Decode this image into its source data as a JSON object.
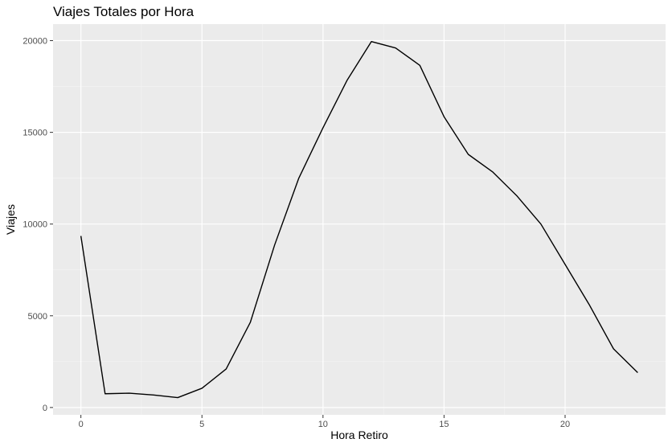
{
  "chart_data": {
    "type": "line",
    "title": "Viajes Totales por Hora",
    "xlabel": "Hora Retiro",
    "ylabel": "Viajes",
    "x": [
      0,
      1,
      2,
      3,
      4,
      5,
      6,
      7,
      8,
      9,
      10,
      11,
      12,
      13,
      14,
      15,
      16,
      17,
      18,
      19,
      20,
      21,
      22,
      23
    ],
    "series": [
      {
        "values": [
          9350,
          750,
          780,
          680,
          540,
          1050,
          2100,
          4650,
          8850,
          12500,
          15250,
          17850,
          19950,
          19600,
          18650,
          15850,
          13800,
          12850,
          11550,
          10000,
          7800,
          5600,
          3200,
          1900
        ]
      }
    ],
    "xlim": [
      -1.15,
      24.15
    ],
    "ylim": [
      -400,
      20900
    ],
    "xticks": [
      0,
      5,
      10,
      15,
      20
    ],
    "yticks": [
      0,
      5000,
      10000,
      15000,
      20000
    ],
    "grid": true,
    "colors": {
      "panel_background": "#EBEBEB",
      "grid_major": "#FFFFFF",
      "grid_minor": "#F5F5F5",
      "line": "#000000",
      "tick_text": "#4D4D4D",
      "text": "#000000"
    }
  }
}
